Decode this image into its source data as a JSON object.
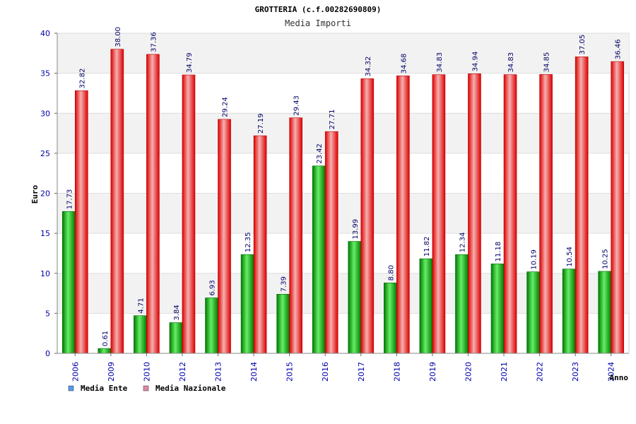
{
  "chart_data": {
    "type": "bar",
    "title": "GROTTERIA (c.f.00282690809)",
    "subtitle": "Media Importi",
    "xlabel": "Anno",
    "ylabel": "Euro",
    "ylim": [
      0,
      40
    ],
    "yticks": [
      "0",
      "5",
      "10",
      "15",
      "20",
      "25",
      "30",
      "35",
      "40"
    ],
    "grid": true,
    "legend_position": "bottom-left",
    "categories": [
      "2006",
      "2009",
      "2010",
      "2012",
      "2013",
      "2014",
      "2015",
      "2016",
      "2017",
      "2018",
      "2019",
      "2020",
      "2021",
      "2022",
      "2023",
      "2024"
    ],
    "series": [
      {
        "name": "Media Ente",
        "color": "#00aa00",
        "legend_color": "#5599ee",
        "values": [
          17.73,
          0.61,
          4.71,
          3.84,
          6.93,
          12.35,
          7.39,
          23.42,
          13.99,
          8.8,
          11.82,
          12.34,
          11.18,
          10.19,
          10.54,
          10.25
        ],
        "labels": [
          "17.73",
          "0.61",
          "4.71",
          "3.84",
          "6.93",
          "12.35",
          "7.39",
          "23.42",
          "13.99",
          "8.80",
          "11.82",
          "12.34",
          "11.18",
          "10.19",
          "10.54",
          "10.25"
        ]
      },
      {
        "name": "Media Nazionale",
        "color": "#ee1111",
        "legend_color": "#dd88aa",
        "values": [
          32.82,
          38.0,
          37.36,
          34.79,
          29.24,
          27.19,
          29.43,
          27.71,
          34.32,
          34.68,
          34.83,
          34.94,
          34.83,
          34.85,
          37.05,
          36.46
        ],
        "labels": [
          "32.82",
          "38.00",
          "37.36",
          "34.79",
          "29.24",
          "27.19",
          "29.43",
          "27.71",
          "34.32",
          "34.68",
          "34.83",
          "34.94",
          "34.83",
          "34.85",
          "37.05",
          "36.46"
        ]
      }
    ]
  }
}
